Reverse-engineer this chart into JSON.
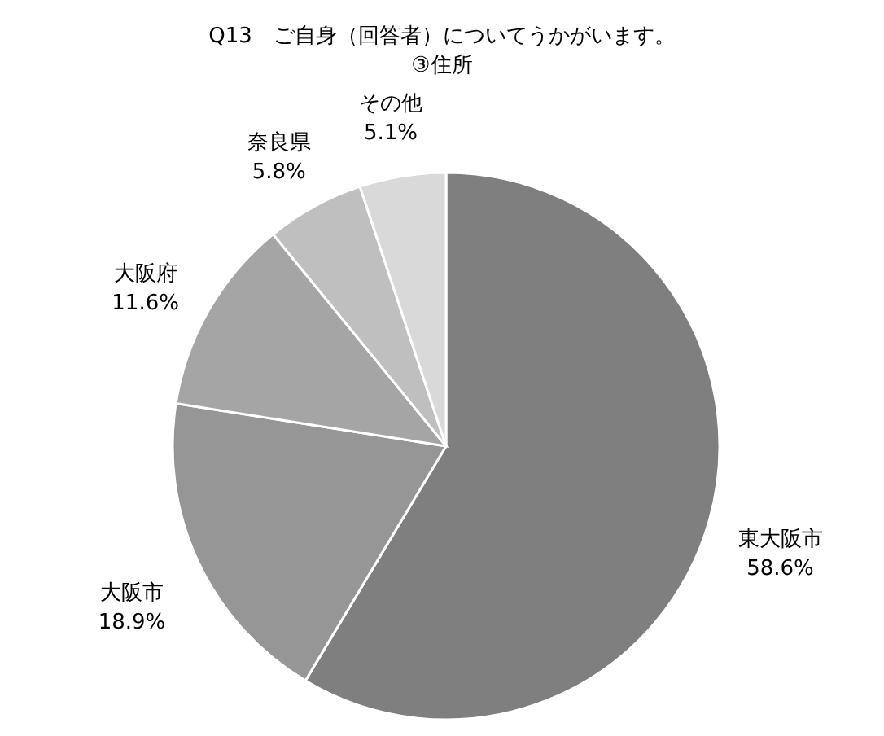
{
  "chart_data": {
    "type": "pie",
    "title": "Q13　ご自身（回答者）についてうかがいます。\n③住所",
    "categories": [
      "東大阪市",
      "大阪市",
      "大阪府",
      "奈良県",
      "その他"
    ],
    "values": [
      58.6,
      18.9,
      11.6,
      5.8,
      5.1
    ],
    "value_labels": [
      "58.6%",
      "18.9%",
      "11.6%",
      "5.8%",
      "5.1%"
    ],
    "colors": [
      "#7f7f7f",
      "#969696",
      "#a5a5a5",
      "#bfbfbf",
      "#d9d9d9"
    ],
    "legend": false
  }
}
